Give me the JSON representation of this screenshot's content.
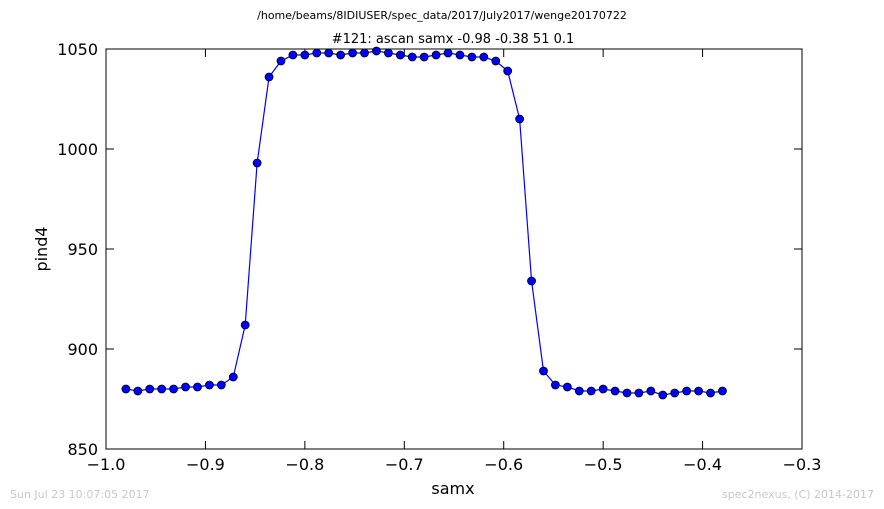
{
  "header": {
    "file_path": "/home/beams/8IDIUSER/spec_data/2017/July2017/wenge20170722"
  },
  "footer": {
    "timestamp": "Sun Jul 23 10:07:05 2017",
    "credit": "spec2nexus, (C) 2014-2017"
  },
  "chart_data": {
    "type": "line",
    "title": "#121: ascan  samx -0.98 -0.38  51 0.1",
    "xlabel": "samx",
    "ylabel": "pind4",
    "xlim": [
      -1.0,
      -0.3
    ],
    "ylim": [
      850,
      1050
    ],
    "xticks": [
      -1.0,
      -0.9,
      -0.8,
      -0.7,
      -0.6,
      -0.5,
      -0.4,
      -0.3
    ],
    "xtick_labels": [
      "−1.0",
      "−0.9",
      "−0.8",
      "−0.7",
      "−0.6",
      "−0.5",
      "−0.4",
      "−0.3"
    ],
    "yticks": [
      850,
      900,
      950,
      1000,
      1050
    ],
    "ytick_labels": [
      "850",
      "900",
      "950",
      "1000",
      "1050"
    ],
    "grid": false,
    "line_color": "#0000ff",
    "marker": "circle",
    "series": [
      {
        "x": [
          -0.98,
          -0.968,
          -0.956,
          -0.944,
          -0.932,
          -0.92,
          -0.908,
          -0.896,
          -0.884,
          -0.872,
          -0.86,
          -0.848,
          -0.836,
          -0.824,
          -0.812,
          -0.8,
          -0.788,
          -0.776,
          -0.764,
          -0.752,
          -0.74,
          -0.728,
          -0.716,
          -0.704,
          -0.692,
          -0.68,
          -0.668,
          -0.656,
          -0.644,
          -0.632,
          -0.62,
          -0.608,
          -0.596,
          -0.584,
          -0.572,
          -0.56,
          -0.548,
          -0.536,
          -0.524,
          -0.512,
          -0.5,
          -0.488,
          -0.476,
          -0.464,
          -0.452,
          -0.44,
          -0.428,
          -0.416,
          -0.404,
          -0.392,
          -0.38
        ],
        "y": [
          880,
          879,
          880,
          880,
          880,
          881,
          881,
          882,
          882,
          886,
          912,
          993,
          1036,
          1044,
          1047,
          1047,
          1048,
          1048,
          1047,
          1048,
          1048,
          1049,
          1048,
          1047,
          1046,
          1046,
          1047,
          1048,
          1047,
          1046,
          1046,
          1044,
          1039,
          1015,
          934,
          889,
          882,
          881,
          879,
          879,
          880,
          879,
          878,
          878,
          879,
          877,
          878,
          879,
          879,
          878,
          879
        ]
      }
    ]
  }
}
